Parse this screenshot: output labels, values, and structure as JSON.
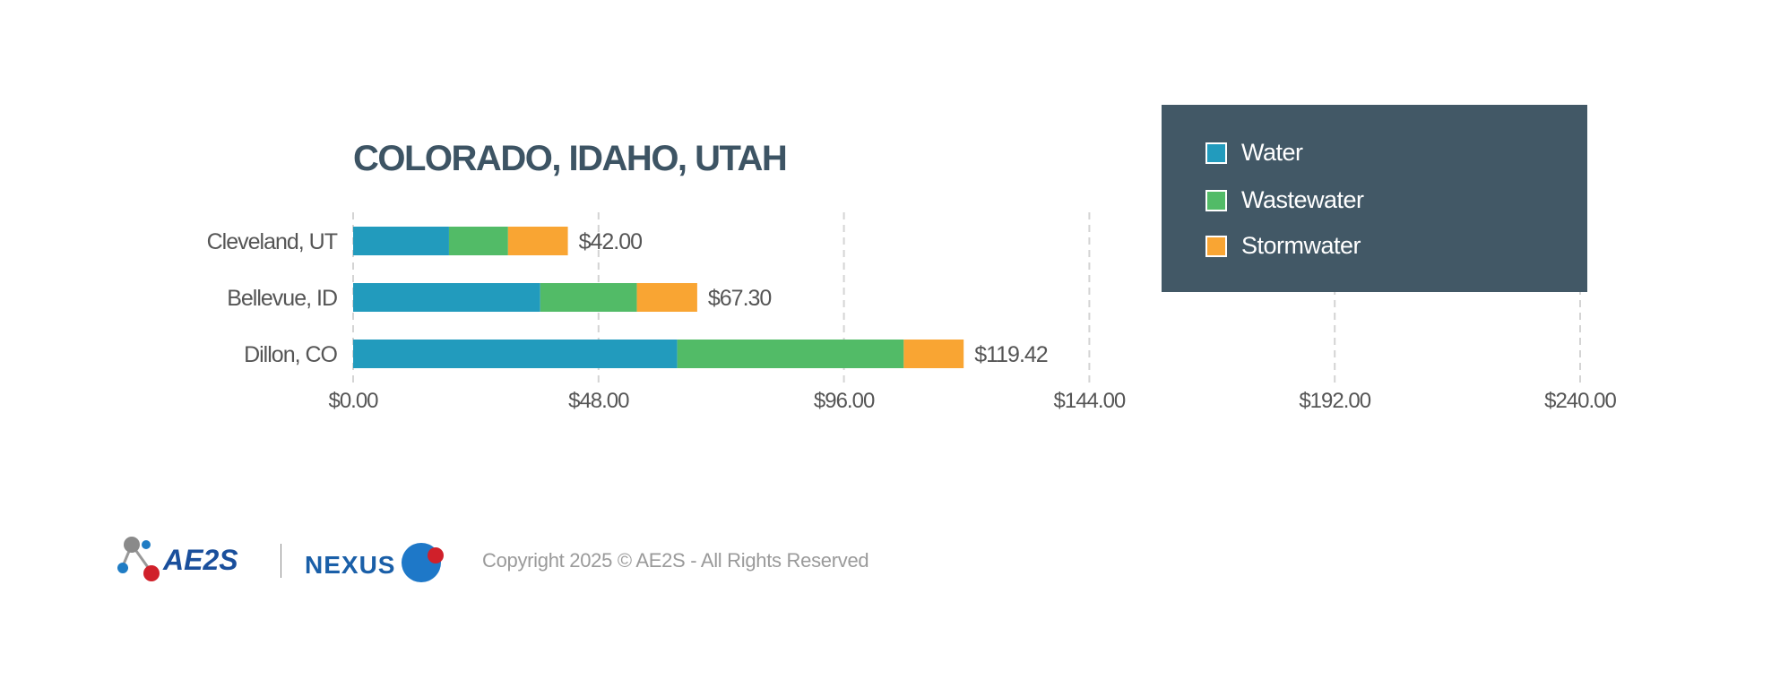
{
  "chart_data": {
    "type": "bar",
    "orientation": "horizontal",
    "stacked": true,
    "title": "COLORADO, IDAHO, UTAH",
    "categories": [
      "Cleveland, UT",
      "Bellevue, ID",
      "Dillon, CO"
    ],
    "series": [
      {
        "name": "Water",
        "color": "#229bbd",
        "values": [
          18.75,
          36.6,
          63.4
        ]
      },
      {
        "name": "Wastewater",
        "color": "#52bb67",
        "values": [
          11.55,
          18.9,
          44.3
        ]
      },
      {
        "name": "Stormwater",
        "color": "#f9a533",
        "values": [
          11.7,
          11.8,
          11.72
        ]
      }
    ],
    "totals": [
      "$42.00",
      "$67.30",
      "$119.42"
    ],
    "total_values": [
      42.0,
      67.3,
      119.42
    ],
    "xlim": [
      0,
      240
    ],
    "xticks": [
      0,
      48,
      96,
      144,
      192,
      240
    ],
    "xtick_labels": [
      "$0.00",
      "$48.00",
      "$96.00",
      "$144.00",
      "$192.00",
      "$240.00"
    ],
    "grid": "vertical dashed",
    "legend": "top-right"
  },
  "footer": {
    "logo_ae2s": "AE2S",
    "logo_nexus": "NEXUS",
    "copyright": "Copyright 2025 © AE2S - All Rights Reserved"
  }
}
